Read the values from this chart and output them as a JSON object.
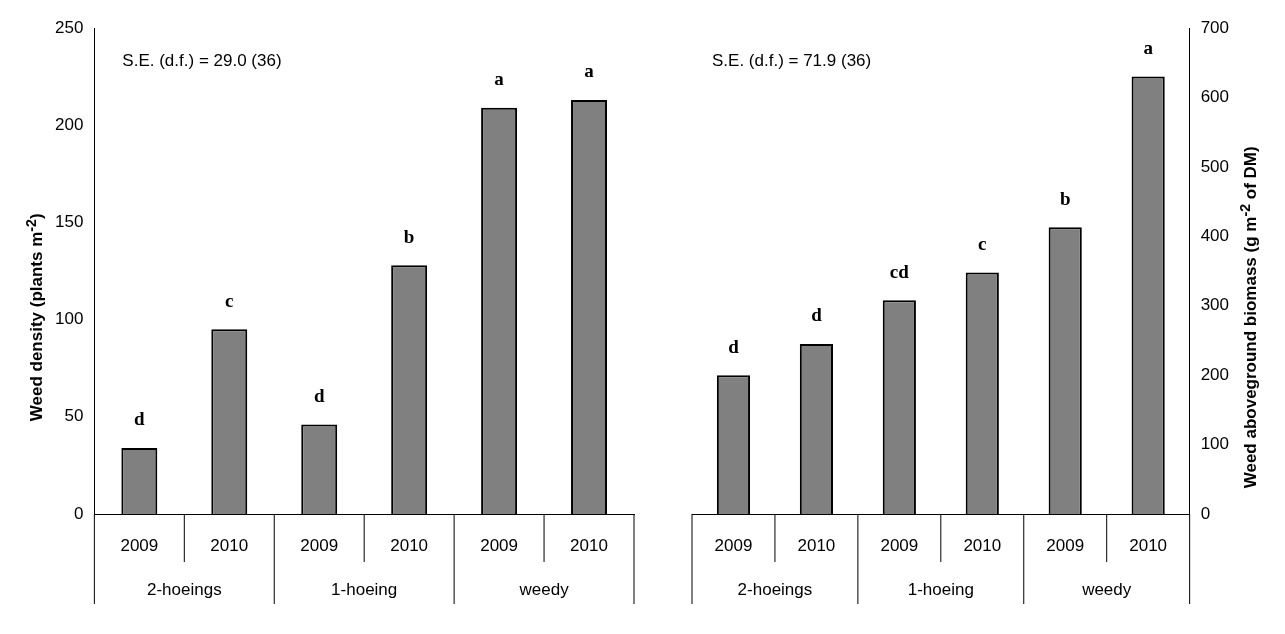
{
  "chart_data": [
    {
      "type": "bar",
      "ylabel": "Weed density (plants m$^{-2}$)",
      "categories": [
        "2009",
        "2010",
        "2009",
        "2010",
        "2009",
        "2010"
      ],
      "values": [
        34,
        95,
        46,
        128,
        209,
        213
      ],
      "color": "#808080",
      "value_labels": [
        "d",
        "c",
        "d",
        "b",
        "a",
        "a"
      ],
      "ylim": [
        0,
        250
      ],
      "yticks": [
        0,
        50,
        100,
        150,
        200,
        250
      ],
      "annotations": [
        "S.E. (d.f.) = 29.0 (36)",
        "2-hoeings",
        "1-hoeing",
        "weedy"
      ]
    },
    {
      "type": "bar",
      "ylabel": "Weed aboveground biomass (g m$^{-2}$ of DM)",
      "categories": [
        "2009",
        "2010",
        "2009",
        "2010",
        "2009",
        "2010"
      ],
      "values": [
        200,
        245,
        308,
        348,
        413,
        630
      ],
      "color": "#808080",
      "value_labels": [
        "d",
        "d",
        "cd",
        "c",
        "b",
        "a"
      ],
      "ylim": [
        0,
        700
      ],
      "yticks": [
        0,
        100,
        200,
        300,
        400,
        500,
        600,
        700
      ],
      "annotations": [
        "S.E. (d.f.) = 71.9 (36)",
        "2-hoeings",
        "1-hoeing",
        "weedy"
      ]
    }
  ]
}
